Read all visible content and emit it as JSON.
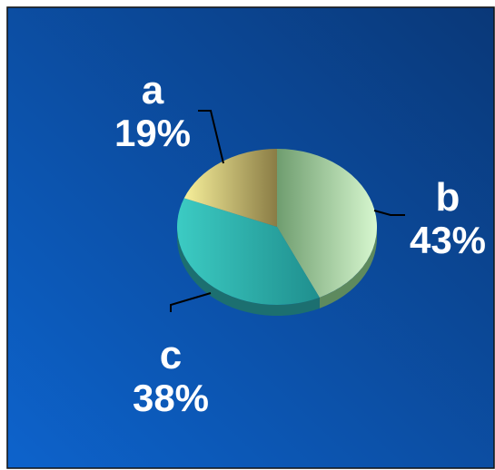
{
  "chart_data": {
    "type": "pie",
    "style": "3d",
    "slices": [
      {
        "label": "a",
        "value": 19,
        "display": "19%",
        "color": "#e8dc7e"
      },
      {
        "label": "b",
        "value": 43,
        "display": "43%",
        "color": "#a9d8a8"
      },
      {
        "label": "c",
        "value": 38,
        "display": "38%",
        "color": "#2fb3b0"
      }
    ],
    "legend": "none",
    "background": {
      "from": "#0d5fc4",
      "to": "#0b3b86"
    }
  }
}
